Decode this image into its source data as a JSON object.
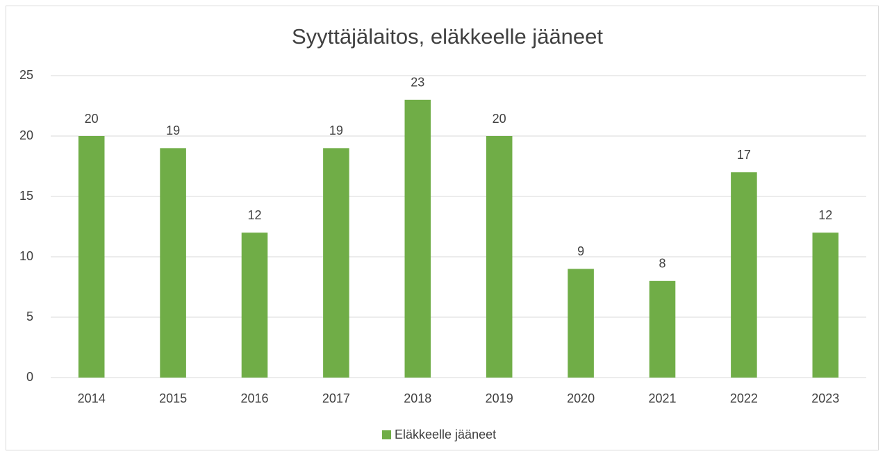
{
  "chart_data": {
    "type": "bar",
    "title": "Syyttäjälaitos, eläkkeelle jääneet",
    "categories": [
      "2014",
      "2015",
      "2016",
      "2017",
      "2018",
      "2019",
      "2020",
      "2021",
      "2022",
      "2023"
    ],
    "series": [
      {
        "name": "Eläkkeelle jääneet",
        "color": "#70ad47",
        "values": [
          20,
          19,
          12,
          19,
          23,
          20,
          9,
          8,
          17,
          12
        ]
      }
    ],
    "ylim": [
      0,
      25
    ],
    "yticks": [
      0,
      5,
      10,
      15,
      20,
      25
    ],
    "grid": true,
    "legend": "bottom"
  }
}
